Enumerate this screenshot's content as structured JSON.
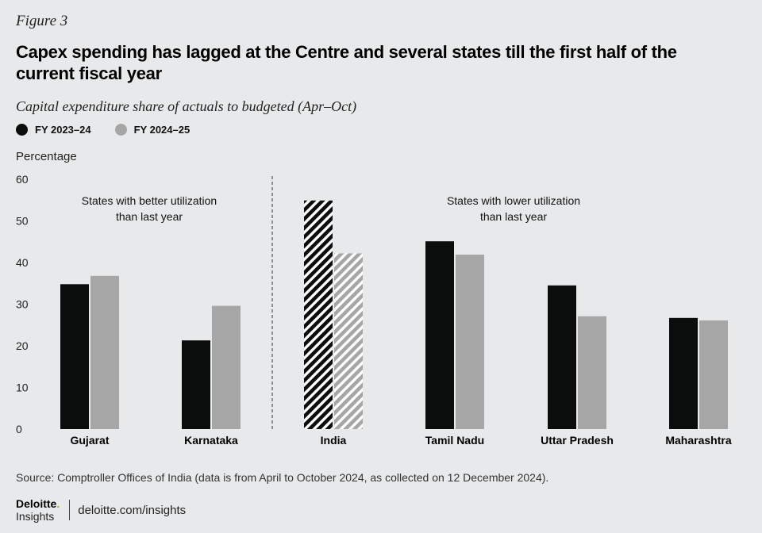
{
  "figure_label": "Figure 3",
  "title": "Capex spending has lagged at the Centre and several states till the first half of the current fiscal  year",
  "subtitle": "Capital expenditure share of actuals to budgeted (Apr–Oct)",
  "legend": [
    {
      "label": "FY 2023–24",
      "color": "#0b0c0c"
    },
    {
      "label": "FY 2024–25",
      "color": "#a5a6a5"
    }
  ],
  "ylabel": "Percentage",
  "source": "Source: Comptroller Offices of India (data is from April to October 2024, as collected on 12 December 2024).",
  "footer": {
    "brand_name": "Deloitte",
    "brand_dot": ".",
    "brand_sub": "Insights",
    "url": "deloitte.com/insights"
  },
  "colors": {
    "series1": "#0b0c0c",
    "series2": "#a5a6a5",
    "background": "#e8e9ea",
    "divider": "#333333"
  },
  "chart_data": {
    "type": "bar",
    "categories": [
      "Gujarat",
      "Karnataka",
      "India",
      "Tamil Nadu",
      "Uttar Pradesh",
      "Maharashtra"
    ],
    "series": [
      {
        "name": "FY 2023–24",
        "values": [
          34.8,
          21.3,
          54.9,
          45.1,
          34.5,
          26.7
        ]
      },
      {
        "name": "FY 2024–25",
        "values": [
          36.8,
          29.6,
          42.2,
          41.9,
          27.1,
          26.1
        ]
      }
    ],
    "hatched_categories": [
      "India"
    ],
    "ylim": [
      0,
      60
    ],
    "yticks": [
      0,
      10,
      20,
      30,
      40,
      50,
      60
    ],
    "ylabel": "Percentage",
    "xlabel": "",
    "annotations": [
      {
        "lines": [
          "States with better utilization",
          "than last year"
        ],
        "group": "left"
      },
      {
        "lines": [
          "States with lower utilization",
          "than last year"
        ],
        "group": "right"
      }
    ],
    "divider_after_category": "Karnataka"
  }
}
